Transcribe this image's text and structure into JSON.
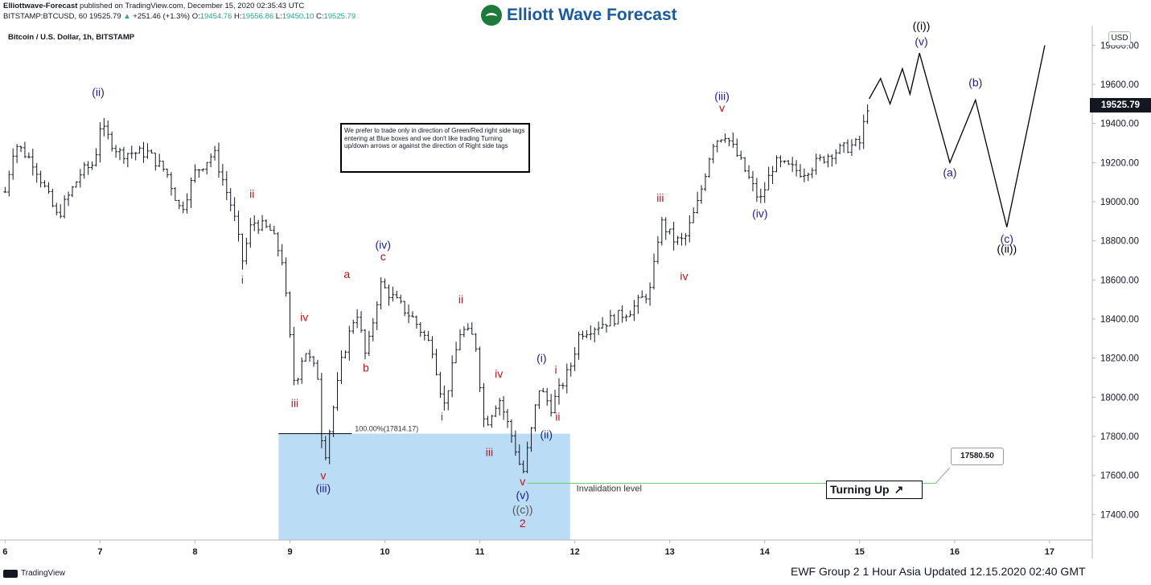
{
  "header": {
    "author": "Elliottwave-Forecast",
    "published": "published on TradingView.com, December 15, 2020 02:35:43 UTC",
    "symbol": "BITSTAMP:BTCUSD, 60",
    "last": "19525.79",
    "change": "+251.46 (+1.3%)",
    "open_label": "O:",
    "open": "19454.76",
    "high_label": "H:",
    "high": "19556.86",
    "low_label": "L:",
    "low": "19450.10",
    "close_label": "C:",
    "close": "19525.79",
    "chart_title": "Bitcoin / U.S. Dollar, 1h, BITSTAMP"
  },
  "logo": {
    "text": "Elliott Wave Forecast"
  },
  "note": "We prefer to trade only in direction of Green/Red right side tags entering at Blue boxes and we don't like trading Turning up/down arrows or against the direction of Right side tags",
  "turning_up": {
    "label": "Turning Up",
    "arrow": "↗"
  },
  "currency": "USD",
  "price_tag": "19525.79",
  "callout": "17580.50",
  "footer": {
    "left": "TradingView",
    "right": "EWF Group 2   1 Hour Asia Updated 12.15.2020 02:40 GMT"
  },
  "colors": {
    "blue_box": "#bbdcf5",
    "wave_red": "#c0151b",
    "wave_blue": "#1d1d8f",
    "invalidation": "#6fd07a",
    "bars": "#131722"
  },
  "chart_data": {
    "type": "ohlc",
    "x_ticks": [
      "6",
      "7",
      "8",
      "9",
      "10",
      "11",
      "12",
      "13",
      "14",
      "15",
      "16",
      "17"
    ],
    "y_ticks": [
      "17400.00",
      "17600.00",
      "17800.00",
      "18000.00",
      "18200.00",
      "18400.00",
      "18600.00",
      "18800.00",
      "19000.00",
      "19200.00",
      "19400.00",
      "19600.00",
      "19800.00"
    ],
    "ylim": [
      17270,
      19900
    ],
    "xlim": [
      5.98,
      17.45
    ],
    "fib_label": "100.00%(17814.17)",
    "fib_level": 17814.17,
    "invalidation_label": "Invalidation level",
    "invalidation_level": 17560,
    "blue_box": {
      "x": [
        8.88,
        11.95
      ],
      "y": [
        17270,
        17814
      ]
    },
    "path_anchors": [
      {
        "x": 6.0,
        "y": 19050
      },
      {
        "x": 6.1,
        "y": 19300
      },
      {
        "x": 6.3,
        "y": 19200
      },
      {
        "x": 6.55,
        "y": 18920
      },
      {
        "x": 6.8,
        "y": 19150
      },
      {
        "x": 6.95,
        "y": 19200
      },
      {
        "x": 6.98,
        "y": 19400
      },
      {
        "x": 7.2,
        "y": 19250
      },
      {
        "x": 7.5,
        "y": 19250
      },
      {
        "x": 7.7,
        "y": 19150
      },
      {
        "x": 7.85,
        "y": 18950
      },
      {
        "x": 8.0,
        "y": 19150
      },
      {
        "x": 8.2,
        "y": 19250
      },
      {
        "x": 8.3,
        "y": 19100
      },
      {
        "x": 8.4,
        "y": 18950
      },
      {
        "x": 8.5,
        "y": 18700
      },
      {
        "x": 8.6,
        "y": 18900
      },
      {
        "x": 8.8,
        "y": 18850
      },
      {
        "x": 8.92,
        "y": 18700
      },
      {
        "x": 9.05,
        "y": 18050
      },
      {
        "x": 9.15,
        "y": 18250
      },
      {
        "x": 9.3,
        "y": 18100
      },
      {
        "x": 9.35,
        "y": 17650
      },
      {
        "x": 9.55,
        "y": 18200
      },
      {
        "x": 9.7,
        "y": 18450
      },
      {
        "x": 9.8,
        "y": 18200
      },
      {
        "x": 9.95,
        "y": 18580
      },
      {
        "x": 10.1,
        "y": 18500
      },
      {
        "x": 10.3,
        "y": 18400
      },
      {
        "x": 10.5,
        "y": 18250
      },
      {
        "x": 10.62,
        "y": 17950
      },
      {
        "x": 10.8,
        "y": 18350
      },
      {
        "x": 10.95,
        "y": 18300
      },
      {
        "x": 11.05,
        "y": 17850
      },
      {
        "x": 11.2,
        "y": 18000
      },
      {
        "x": 11.35,
        "y": 17780
      },
      {
        "x": 11.45,
        "y": 17600
      },
      {
        "x": 11.55,
        "y": 17850
      },
      {
        "x": 11.62,
        "y": 18050
      },
      {
        "x": 11.75,
        "y": 17950
      },
      {
        "x": 11.85,
        "y": 18050
      },
      {
        "x": 11.95,
        "y": 18150
      },
      {
        "x": 12.05,
        "y": 18330
      },
      {
        "x": 12.4,
        "y": 18400
      },
      {
        "x": 12.6,
        "y": 18450
      },
      {
        "x": 12.8,
        "y": 18550
      },
      {
        "x": 12.9,
        "y": 18900
      },
      {
        "x": 13.05,
        "y": 18800
      },
      {
        "x": 13.15,
        "y": 18800
      },
      {
        "x": 13.3,
        "y": 19000
      },
      {
        "x": 13.45,
        "y": 19300
      },
      {
        "x": 13.58,
        "y": 19350
      },
      {
        "x": 13.75,
        "y": 19200
      },
      {
        "x": 13.95,
        "y": 19000
      },
      {
        "x": 14.1,
        "y": 19200
      },
      {
        "x": 14.4,
        "y": 19150
      },
      {
        "x": 14.7,
        "y": 19250
      },
      {
        "x": 15.0,
        "y": 19300
      },
      {
        "x": 15.1,
        "y": 19526
      }
    ],
    "projection": [
      {
        "x": 15.1,
        "y": 19526
      },
      {
        "x": 15.22,
        "y": 19630
      },
      {
        "x": 15.32,
        "y": 19500
      },
      {
        "x": 15.45,
        "y": 19680
      },
      {
        "x": 15.53,
        "y": 19550
      },
      {
        "x": 15.63,
        "y": 19760
      },
      {
        "x": 15.95,
        "y": 19200
      },
      {
        "x": 16.22,
        "y": 19520
      },
      {
        "x": 16.55,
        "y": 18870
      },
      {
        "x": 16.95,
        "y": 19800
      }
    ],
    "wave_labels": [
      {
        "text": "(ii)",
        "x": 6.98,
        "y": 19540,
        "color": "blue"
      },
      {
        "text": "ii",
        "x": 8.6,
        "y": 19020,
        "color": "red"
      },
      {
        "text": "i",
        "x": 8.5,
        "y": 18580,
        "color": "red"
      },
      {
        "text": "iv",
        "x": 9.15,
        "y": 18390,
        "color": "red"
      },
      {
        "text": "iii",
        "x": 9.05,
        "y": 17950,
        "color": "red"
      },
      {
        "text": "v",
        "x": 9.35,
        "y": 17580,
        "color": "red"
      },
      {
        "text": "(iii)",
        "x": 9.35,
        "y": 17515,
        "color": "blue"
      },
      {
        "text": "a",
        "x": 9.6,
        "y": 18610,
        "color": "red"
      },
      {
        "text": "b",
        "x": 9.8,
        "y": 18130,
        "color": "red"
      },
      {
        "text": "(iv)",
        "x": 9.98,
        "y": 18760,
        "color": "blue"
      },
      {
        "text": "c",
        "x": 9.98,
        "y": 18700,
        "color": "red"
      },
      {
        "text": "ii",
        "x": 10.8,
        "y": 18480,
        "color": "red"
      },
      {
        "text": "i",
        "x": 10.6,
        "y": 17880,
        "color": "red"
      },
      {
        "text": "iv",
        "x": 11.2,
        "y": 18100,
        "color": "red"
      },
      {
        "text": "iii",
        "x": 11.1,
        "y": 17700,
        "color": "red"
      },
      {
        "text": "v",
        "x": 11.45,
        "y": 17550,
        "color": "red"
      },
      {
        "text": "(v)",
        "x": 11.45,
        "y": 17480,
        "color": "blue"
      },
      {
        "text": "((c))",
        "x": 11.45,
        "y": 17405,
        "color": "gray"
      },
      {
        "text": "2",
        "x": 11.45,
        "y": 17335,
        "color": "red"
      },
      {
        "text": "(i)",
        "x": 11.65,
        "y": 18180,
        "color": "blue"
      },
      {
        "text": "i",
        "x": 11.8,
        "y": 18120,
        "color": "red"
      },
      {
        "text": "ii",
        "x": 11.82,
        "y": 17880,
        "color": "red"
      },
      {
        "text": "(ii)",
        "x": 11.7,
        "y": 17790,
        "color": "blue"
      },
      {
        "text": "iii",
        "x": 12.9,
        "y": 19000,
        "color": "red"
      },
      {
        "text": "iv",
        "x": 13.15,
        "y": 18600,
        "color": "red"
      },
      {
        "text": "(iii)",
        "x": 13.55,
        "y": 19520,
        "color": "blue"
      },
      {
        "text": "v",
        "x": 13.55,
        "y": 19460,
        "color": "red"
      },
      {
        "text": "(iv)",
        "x": 13.95,
        "y": 18920,
        "color": "blue"
      },
      {
        "text": "((i))",
        "x": 15.65,
        "y": 19880,
        "color": "black"
      },
      {
        "text": "(v)",
        "x": 15.65,
        "y": 19800,
        "color": "blue"
      },
      {
        "text": "(a)",
        "x": 15.95,
        "y": 19130,
        "color": "blue"
      },
      {
        "text": "(b)",
        "x": 16.22,
        "y": 19590,
        "color": "blue"
      },
      {
        "text": "(c)",
        "x": 16.55,
        "y": 18790,
        "color": "blue"
      },
      {
        "text": "((ii))",
        "x": 16.55,
        "y": 18740,
        "color": "black"
      }
    ]
  }
}
